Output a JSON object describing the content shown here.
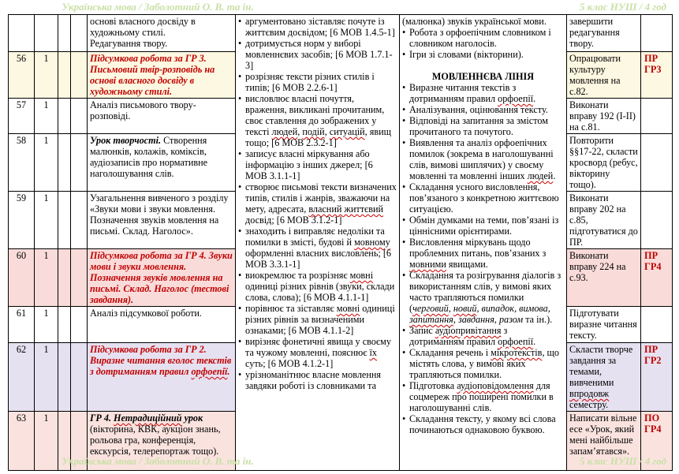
{
  "bullet": "•",
  "colors": {
    "accent_red": "#c00000",
    "header_green": "#c8e0a6",
    "row_cream": "#fdf8e1",
    "row_pink": "#f9dcda",
    "row_lavender": "#e6e1f0",
    "row_pink_light": "#fae3df",
    "border": "#000000"
  },
  "header": {
    "left": "Українська мова / Заболотний О. В. та ін.",
    "right": "5 клас НУШ / 4 год"
  },
  "footer": {
    "left": "Українська мова / Заболотний О. В. та ін.",
    "right": "5 клас НУШ / 4 год"
  },
  "table": {
    "rows": [
      {
        "num": "",
        "hours": "",
        "bg": "#ffffff",
        "topic": [
          [
            "основі власного досвіду в художньому стилі.\nРедагування твору.",
            ""
          ]
        ],
        "hw": [
          [
            "завершити редагування твору.",
            ""
          ]
        ],
        "pr": ""
      },
      {
        "num": "56",
        "hours": "1",
        "bg": "#fdf8e1",
        "topic": [
          [
            "Підсумкова робота за ГР 3. Письмовий твір-розповідь на основі власного досвіду в художньому стилі.",
            "ri"
          ]
        ],
        "hw": [
          [
            "Опрацювати культуру мовлення на с.82.",
            ""
          ]
        ],
        "pr": "ПР ГР3"
      },
      {
        "num": "57",
        "hours": "1",
        "bg": "#ffffff",
        "topic": [
          [
            "Аналіз письмового твору-розповіді.",
            ""
          ]
        ],
        "hw": [
          [
            "Виконати вправу 192 (І-ІІ) на с.81.",
            ""
          ]
        ],
        "pr": ""
      },
      {
        "num": "58",
        "hours": "1",
        "bg": "#ffffff",
        "topic": [
          [
            "Урок творчості.",
            "bi"
          ],
          [
            " Створення малюнків, колажів, коміксів, аудіозаписів про нормативне наголошування слів.",
            ""
          ]
        ],
        "hw": [
          [
            "Повторити §§17-22, скласти кросворд (ребус, вікторину тощо).",
            ""
          ]
        ],
        "pr": ""
      },
      {
        "num": "59",
        "hours": "1",
        "bg": "#ffffff",
        "topic": [
          [
            "Узагальнення вивченого з розділу «Звуки мови і звуки мовлення. Позначення звуків мовлення на письмі. Склад. Наголос».",
            ""
          ]
        ],
        "hw": [
          [
            "Виконати вправу 202 на с.85, підготуватися до ПР.",
            ""
          ]
        ],
        "pr": ""
      },
      {
        "num": "60",
        "hours": "1",
        "bg": "#f9dcda",
        "topic": [
          [
            "Підсумкова робота за ГР 4. Звуки мови і звуки мовлення. Позначення звуків мовлення на письмі. Склад. Наголос (тестові завдання).",
            "ri"
          ]
        ],
        "hw": [
          [
            "Виконати вправу 224 на с.93.",
            ""
          ]
        ],
        "pr": "ПР ГР4"
      },
      {
        "num": "61",
        "hours": "1",
        "bg": "#ffffff",
        "topic": [
          [
            "Аналіз підсумкової роботи.",
            ""
          ]
        ],
        "hw": [
          [
            "Підготувати виразне читання тексту.",
            ""
          ]
        ],
        "pr": ""
      },
      {
        "num": "62",
        "hours": "1",
        "bg": "#e6e1f0",
        "topic": [
          [
            "Підсумкова робота за ГР 2. Виразне читання вголос текстів з дотриманням правил ",
            "ri"
          ],
          [
            "орфоепії",
            "ri sq"
          ],
          [
            ".",
            "ri"
          ]
        ],
        "hw": [
          [
            "Скласти творче завдання за темами, вивченими ",
            ""
          ],
          [
            "впродовж",
            "sq"
          ],
          [
            " семестру.",
            ""
          ]
        ],
        "pr": "ПР ГР2"
      },
      {
        "num": "63",
        "hours": "1",
        "bg": "#fae3df",
        "topic": [
          [
            "ГР 4. ",
            "bi"
          ],
          [
            "Нетрадиційний",
            "bi sq"
          ],
          [
            " урок",
            "bi"
          ],
          [
            " (вікторина, КВК, аукціон знань, рольова гра, конференція, екскурсія, телерепортаж тощо).",
            ""
          ]
        ],
        "hw": [
          [
            "Написати вільне есе «Урок, який мені найбільше запам’ятався».",
            ""
          ]
        ],
        "pr": "ПО ГР4"
      }
    ],
    "outcomes": [
      [
        [
          "аргументовано зіставляє почуте із життєвим досвідом; [6 МОВ 1.4.5-1]",
          ""
        ]
      ],
      [
        [
          "дотримується норм у виборі мовленнєвих засобів; [6 МОВ 1.7.1-3]",
          ""
        ]
      ],
      [
        [
          "розрізняє тексти різних стилів і типів; [6 МОВ 2.2.6-1]",
          ""
        ]
      ],
      [
        [
          "висловлює власні почуття, враження, викликані прочитаним, своє ставлення до зображених у тексті ",
          ""
        ],
        [
          "людей",
          "sq"
        ],
        [
          ", ",
          ""
        ],
        [
          "подій",
          "sq"
        ],
        [
          ", ",
          ""
        ],
        [
          "ситуацій",
          "sq"
        ],
        [
          ", явищ тощо; [6 МОВ 2.3.2-1]",
          ""
        ]
      ],
      [
        [
          "записує власні міркування або інформацію з інших джерел; [6 МОВ 3.1.1-1]",
          ""
        ]
      ],
      [
        [
          "створює письмові тексти визначених типів, стилів і жанрів, зважаючи на мету, адресата, ",
          ""
        ],
        [
          "власний життєвий",
          "sq"
        ],
        [
          " досвід; [6 МОВ 3.1.2-1]",
          ""
        ]
      ],
      [
        [
          "знаходить і виправляє недоліки та помилки в змісті, будові й ",
          ""
        ],
        [
          "мовному",
          "sq"
        ],
        [
          " оформленні власних висловлень; [6 МОВ 3.3.1-1]",
          ""
        ]
      ],
      [
        [
          "виокремлює та розрізняє ",
          ""
        ],
        [
          "мовні",
          "sq"
        ],
        [
          " одиниці різних рівнів (звуки, склади слова, слова); [6 МОВ 4.1.1-1]",
          ""
        ]
      ],
      [
        [
          "порівнює та зіставляє ",
          ""
        ],
        [
          "мовні",
          "sq"
        ],
        [
          " одиниці різних рівнів за визначеними ознаками; [6 МОВ 4.1.1-2]",
          ""
        ]
      ],
      [
        [
          "вирізняє фонетичні явища у своєму та чужому мовленні, пояснює ",
          ""
        ],
        [
          "їх",
          "sq"
        ],
        [
          " суть; [6 МОВ 4.1.2-1]",
          ""
        ]
      ],
      [
        [
          "урізноманітнює власне мовлення завдяки роботі із словниками та",
          ""
        ]
      ]
    ],
    "speech": {
      "cont": [
        [
          "(малюнка) звуків української мови.",
          ""
        ]
      ],
      "items_top": [
        [
          [
            "Робота з орфоепічним словником і словником наголосів.",
            ""
          ]
        ],
        [
          [
            "Ігри зі словами (вікторини).",
            ""
          ]
        ]
      ],
      "heading": "МОВЛЕННЄВА ЛІНІЯ",
      "items": [
        [
          [
            "Виразне читання текстів з дотриманням правил ",
            ""
          ],
          [
            "орфоепії",
            "sq"
          ],
          [
            ".",
            ""
          ]
        ],
        [
          [
            "Аналізування, оцінювання тексту.",
            ""
          ]
        ],
        [
          [
            "Відповіді на запитання за змістом прочитаного та почутого.",
            ""
          ]
        ],
        [
          [
            "Виявлення та аналіз орфоепічних помилок (зокрема в наголошуванні слів, вимові шиплячих) у своєму мовленні та мовленні інших ",
            ""
          ],
          [
            "людей",
            "sq"
          ],
          [
            ".",
            ""
          ]
        ],
        [
          [
            "Складання усного висловлення, пов’язаного з конкретною життєвою ситуацією.",
            ""
          ]
        ],
        [
          [
            "Обмін думками на теми, пов’язані із ціннісними орієнтирами.",
            ""
          ]
        ],
        [
          [
            "Висловлення міркувань щодо проблемних питань, пов’язаних з ",
            ""
          ],
          [
            "мовними",
            "sq"
          ],
          [
            " явищами.",
            ""
          ]
        ],
        [
          [
            "Складання та розігрування діалогів з використанням слів, у вимові яких часто трапляються помилки (",
            ""
          ],
          [
            "черговий",
            "i sq"
          ],
          [
            ", ",
            "i"
          ],
          [
            "новий",
            "i sq"
          ],
          [
            ", випадок, вимова, ",
            "i"
          ],
          [
            "запитання",
            "i sq"
          ],
          [
            ", завдання, разом",
            "i"
          ],
          [
            " та ін.).",
            ""
          ]
        ],
        [
          [
            "Запис ",
            ""
          ],
          [
            "аудіопривітання",
            "sq"
          ],
          [
            " з дотриманням правил ",
            ""
          ],
          [
            "орфоепії",
            "sq"
          ],
          [
            ".",
            ""
          ]
        ],
        [
          [
            "Складання речень і ",
            ""
          ],
          [
            "мікротекстів",
            "sq"
          ],
          [
            ", що містять слова, у вимові яких трапляються помилки.",
            ""
          ]
        ],
        [
          [
            "Підготовка ",
            ""
          ],
          [
            "аудіоповідомлення",
            "sq"
          ],
          [
            " для соцмереж про поширені помилки в наголошуванні слів.",
            ""
          ]
        ],
        [
          [
            "Складання тексту, у якому всі слова починаються однаковою буквою.",
            ""
          ]
        ]
      ]
    }
  }
}
